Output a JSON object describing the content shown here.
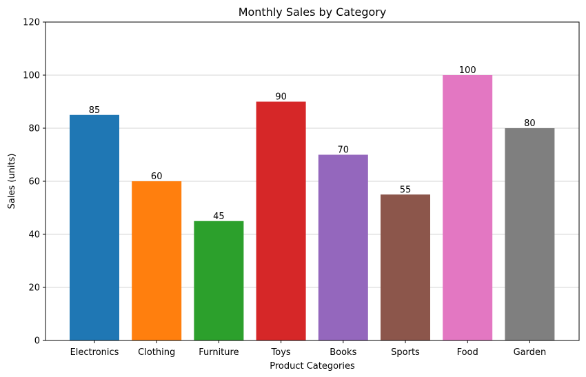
{
  "chart_data": {
    "type": "bar",
    "title": "Monthly Sales by Category",
    "xlabel": "Product Categories",
    "ylabel": "Sales (units)",
    "categories": [
      "Electronics",
      "Clothing",
      "Furniture",
      "Toys",
      "Books",
      "Sports",
      "Food",
      "Garden"
    ],
    "values": [
      85,
      60,
      45,
      90,
      70,
      55,
      100,
      80
    ],
    "data_labels": [
      "85",
      "60",
      "45",
      "90",
      "70",
      "55",
      "100",
      "80"
    ],
    "colors": [
      "#1f77b4",
      "#ff7f0e",
      "#2ca02c",
      "#d62728",
      "#9467bd",
      "#8c564b",
      "#e377c2",
      "#7f7f7f"
    ],
    "ylim": [
      0,
      120
    ],
    "yticks": [
      0,
      20,
      40,
      60,
      80,
      100,
      120
    ],
    "ytick_labels": [
      "0",
      "20",
      "40",
      "60",
      "80",
      "100",
      "120"
    ],
    "grid": "y-axis",
    "legend": "none"
  }
}
